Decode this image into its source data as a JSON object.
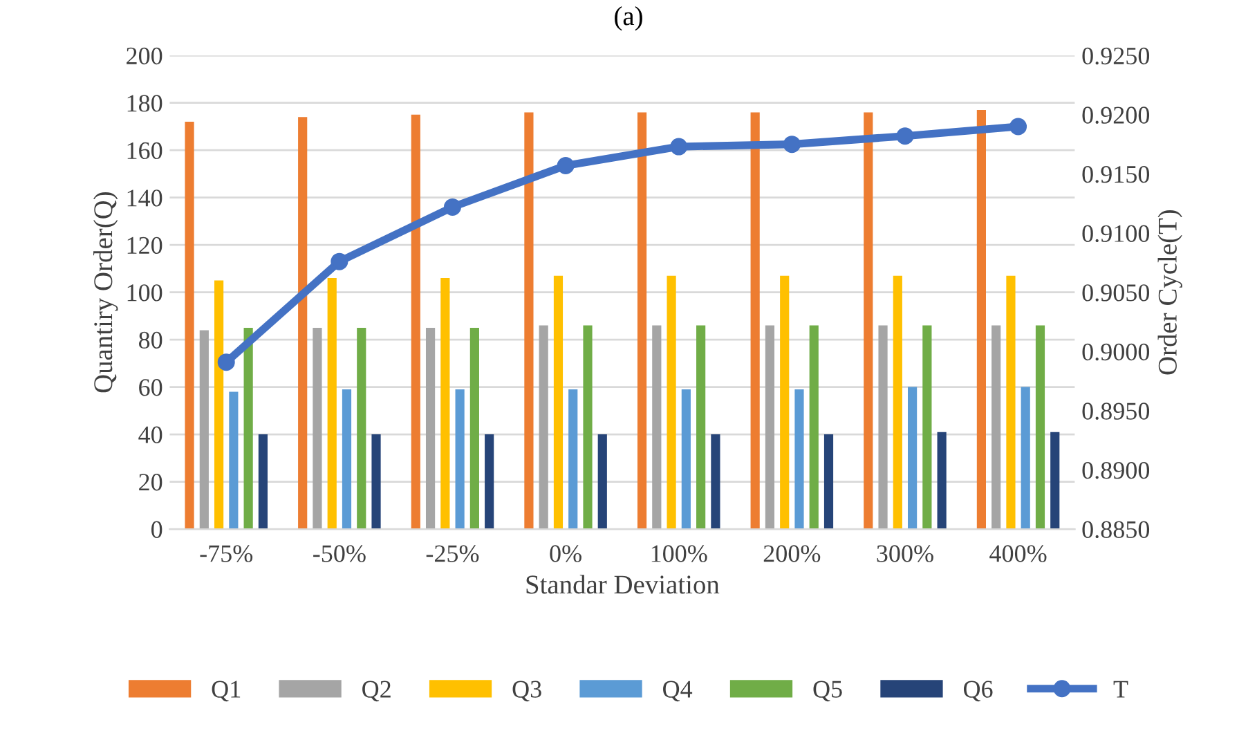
{
  "chart_data": {
    "type": "bar",
    "annotations": [
      "(a)"
    ],
    "xlabel": "Standar Deviation",
    "ylabel": "Quantiry Order(Q)",
    "y2label": "Order Cycle(T)",
    "categories": [
      "-75%",
      "-50%",
      "-25%",
      "0%",
      "100%",
      "200%",
      "300%",
      "400%"
    ],
    "series": [
      {
        "name": "Q1",
        "color": "#ed7d31",
        "values": [
          172,
          174,
          175,
          176,
          176,
          176,
          176,
          177
        ]
      },
      {
        "name": "Q2",
        "color": "#a5a5a5",
        "values": [
          84,
          85,
          85,
          86,
          86,
          86,
          86,
          86
        ]
      },
      {
        "name": "Q3",
        "color": "#ffc000",
        "values": [
          105,
          106,
          106,
          107,
          107,
          107,
          107,
          107
        ]
      },
      {
        "name": "Q4",
        "color": "#5b9bd5",
        "values": [
          58,
          59,
          59,
          59,
          59,
          59,
          60,
          60
        ]
      },
      {
        "name": "Q5",
        "color": "#70ad47",
        "values": [
          85,
          85,
          85,
          86,
          86,
          86,
          86,
          86
        ]
      },
      {
        "name": "Q6",
        "color": "#264478",
        "values": [
          40,
          40,
          40,
          40,
          40,
          40,
          41,
          41
        ]
      },
      {
        "name": "T",
        "type": "line",
        "axis": "y2",
        "color": "#4472c4",
        "marker": "circle",
        "values": [
          0.8991,
          0.9076,
          0.9122,
          0.9157,
          0.9173,
          0.9175,
          0.9182,
          0.919
        ]
      }
    ],
    "ylim": [
      0,
      200
    ],
    "yticks": [
      0,
      20,
      40,
      60,
      80,
      100,
      120,
      140,
      160,
      180,
      200
    ],
    "y2lim": [
      0.885,
      0.925
    ],
    "y2ticks": [
      {
        "value": 0.885,
        "label": "0.8850"
      },
      {
        "value": 0.89,
        "label": "0.8900"
      },
      {
        "value": 0.895,
        "label": "0.8950"
      },
      {
        "value": 0.9,
        "label": "0.9000"
      },
      {
        "value": 0.905,
        "label": "0.9050"
      },
      {
        "value": 0.91,
        "label": "0.9100"
      },
      {
        "value": 0.915,
        "label": "0.9150"
      },
      {
        "value": 0.92,
        "label": "0.9200"
      },
      {
        "value": 0.925,
        "label": "0.9250"
      }
    ],
    "grid": "y",
    "legend": "bottom"
  }
}
